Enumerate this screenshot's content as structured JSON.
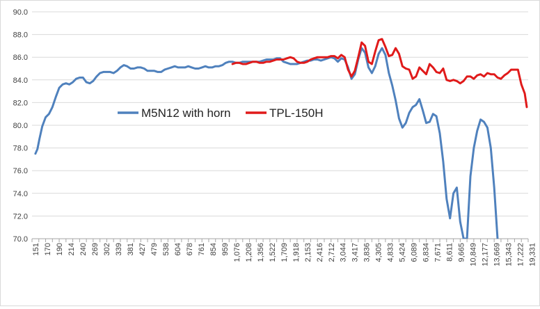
{
  "chart_data": {
    "type": "line",
    "title": "",
    "xlabel": "",
    "ylabel": "",
    "ylim": [
      70,
      90
    ],
    "y_ticks": [
      "70.0",
      "72.0",
      "74.0",
      "76.0",
      "78.0",
      "80.0",
      "82.0",
      "84.0",
      "86.0",
      "88.0",
      "90.0"
    ],
    "x_tick_labels": [
      "151",
      "170",
      "190",
      "214",
      "240",
      "269",
      "302",
      "339",
      "381",
      "427",
      "479",
      "538",
      "604",
      "678",
      "761",
      "854",
      "959",
      "1,076",
      "1,208",
      "1,356",
      "1,522",
      "1,709",
      "1,918",
      "2,153",
      "2,416",
      "2,712",
      "3,044",
      "3,417",
      "3,836",
      "4,305",
      "4,833",
      "5,424",
      "6,089",
      "6,834",
      "7,671",
      "8,611",
      "9,665",
      "10,849",
      "12,177",
      "13,669",
      "15,343",
      "17,222",
      "19,331"
    ],
    "grid": "horizontal",
    "legend_position": "center-left",
    "series": [
      {
        "name": "M5N12 with horn",
        "color": "#4f81bd",
        "points": [
          [
            0,
            77.5
          ],
          [
            0.3,
            77.9
          ],
          [
            0.6,
            78.8
          ],
          [
            1,
            79.9
          ],
          [
            1.5,
            80.7
          ],
          [
            2,
            81.0
          ],
          [
            2.5,
            81.6
          ],
          [
            3,
            82.5
          ],
          [
            3.5,
            83.3
          ],
          [
            4,
            83.6
          ],
          [
            4.5,
            83.7
          ],
          [
            5,
            83.6
          ],
          [
            5.5,
            83.8
          ],
          [
            6,
            84.1
          ],
          [
            6.5,
            84.2
          ],
          [
            7,
            84.2
          ],
          [
            7.5,
            83.8
          ],
          [
            8,
            83.7
          ],
          [
            8.5,
            83.9
          ],
          [
            9,
            84.3
          ],
          [
            9.5,
            84.6
          ],
          [
            10,
            84.7
          ],
          [
            10.5,
            84.7
          ],
          [
            11,
            84.7
          ],
          [
            11.5,
            84.6
          ],
          [
            12,
            84.8
          ],
          [
            12.5,
            85.1
          ],
          [
            13,
            85.3
          ],
          [
            13.5,
            85.2
          ],
          [
            14,
            85.0
          ],
          [
            14.5,
            85.0
          ],
          [
            15,
            85.1
          ],
          [
            15.5,
            85.1
          ],
          [
            16,
            85.0
          ],
          [
            16.5,
            84.8
          ],
          [
            17,
            84.8
          ],
          [
            17.5,
            84.8
          ],
          [
            18,
            84.7
          ],
          [
            18.5,
            84.7
          ],
          [
            19,
            84.9
          ],
          [
            19.5,
            85.0
          ],
          [
            20,
            85.1
          ],
          [
            20.5,
            85.2
          ],
          [
            21,
            85.1
          ],
          [
            21.5,
            85.1
          ],
          [
            22,
            85.1
          ],
          [
            22.5,
            85.2
          ],
          [
            23,
            85.1
          ],
          [
            23.5,
            85.0
          ],
          [
            24,
            85.0
          ],
          [
            24.5,
            85.1
          ],
          [
            25,
            85.2
          ],
          [
            25.5,
            85.1
          ],
          [
            26,
            85.1
          ],
          [
            26.5,
            85.2
          ],
          [
            27,
            85.2
          ],
          [
            27.5,
            85.3
          ],
          [
            28,
            85.5
          ],
          [
            28.5,
            85.6
          ],
          [
            29,
            85.6
          ],
          [
            29.5,
            85.5
          ],
          [
            30,
            85.5
          ],
          [
            30.5,
            85.6
          ],
          [
            31,
            85.6
          ],
          [
            31.5,
            85.6
          ],
          [
            32,
            85.6
          ],
          [
            32.5,
            85.6
          ],
          [
            33,
            85.6
          ],
          [
            33.5,
            85.7
          ],
          [
            34,
            85.8
          ],
          [
            34.5,
            85.8
          ],
          [
            35,
            85.8
          ],
          [
            35.5,
            85.9
          ],
          [
            36,
            85.9
          ],
          [
            36.5,
            85.6
          ],
          [
            37,
            85.5
          ],
          [
            37.5,
            85.4
          ],
          [
            38,
            85.4
          ],
          [
            38.5,
            85.4
          ],
          [
            39,
            85.5
          ],
          [
            39.5,
            85.6
          ],
          [
            40,
            85.7
          ],
          [
            40.5,
            85.7
          ],
          [
            41,
            85.8
          ],
          [
            41.5,
            85.8
          ],
          [
            42,
            85.7
          ],
          [
            42.5,
            85.8
          ],
          [
            43,
            85.9
          ],
          [
            43.5,
            86.0
          ],
          [
            44,
            85.9
          ],
          [
            44.5,
            85.6
          ],
          [
            45,
            85.9
          ],
          [
            45.5,
            85.8
          ],
          [
            46,
            85.1
          ],
          [
            46.5,
            84.1
          ],
          [
            47,
            84.5
          ],
          [
            47.5,
            85.8
          ],
          [
            48,
            86.8
          ],
          [
            48.5,
            86.4
          ],
          [
            49,
            85.1
          ],
          [
            49.5,
            84.6
          ],
          [
            50,
            85.2
          ],
          [
            50.5,
            86.3
          ],
          [
            51,
            86.8
          ],
          [
            51.5,
            86.2
          ],
          [
            52,
            84.6
          ],
          [
            52.5,
            83.5
          ],
          [
            53,
            82.2
          ],
          [
            53.5,
            80.6
          ],
          [
            54,
            79.8
          ],
          [
            54.5,
            80.2
          ],
          [
            55,
            81.1
          ],
          [
            55.5,
            81.6
          ],
          [
            56,
            81.8
          ],
          [
            56.5,
            82.3
          ],
          [
            57,
            81.3
          ],
          [
            57.5,
            80.2
          ],
          [
            58,
            80.3
          ],
          [
            58.5,
            81.0
          ],
          [
            59,
            80.8
          ],
          [
            59.5,
            79.3
          ],
          [
            60,
            76.8
          ],
          [
            60.5,
            73.5
          ],
          [
            61,
            71.8
          ],
          [
            61.5,
            74.0
          ],
          [
            62,
            74.5
          ],
          [
            62.5,
            71.5
          ],
          [
            63,
            70.0
          ],
          [
            63.5,
            70.0
          ],
          [
            64,
            75.5
          ],
          [
            64.5,
            78.0
          ],
          [
            65,
            79.5
          ],
          [
            65.5,
            80.5
          ],
          [
            66,
            80.3
          ],
          [
            66.5,
            79.8
          ],
          [
            67,
            78.0
          ],
          [
            67.5,
            74.5
          ],
          [
            68,
            70.0
          ]
        ]
      },
      {
        "name": "TPL-150H",
        "color": "#e01a1a",
        "points": [
          [
            29,
            85.4
          ],
          [
            29.5,
            85.5
          ],
          [
            30,
            85.5
          ],
          [
            30.5,
            85.4
          ],
          [
            31,
            85.4
          ],
          [
            31.5,
            85.5
          ],
          [
            32,
            85.6
          ],
          [
            32.5,
            85.6
          ],
          [
            33,
            85.5
          ],
          [
            33.5,
            85.5
          ],
          [
            34,
            85.6
          ],
          [
            34.5,
            85.6
          ],
          [
            35,
            85.7
          ],
          [
            35.5,
            85.8
          ],
          [
            36,
            85.8
          ],
          [
            36.5,
            85.8
          ],
          [
            37,
            85.9
          ],
          [
            37.5,
            86.0
          ],
          [
            38,
            85.9
          ],
          [
            38.5,
            85.6
          ],
          [
            39,
            85.5
          ],
          [
            39.5,
            85.5
          ],
          [
            40,
            85.6
          ],
          [
            40.5,
            85.8
          ],
          [
            41,
            85.9
          ],
          [
            41.5,
            86.0
          ],
          [
            42,
            86.0
          ],
          [
            42.5,
            86.0
          ],
          [
            43,
            86.0
          ],
          [
            43.5,
            86.1
          ],
          [
            44,
            86.1
          ],
          [
            44.5,
            85.9
          ],
          [
            45,
            86.2
          ],
          [
            45.5,
            86.0
          ],
          [
            46,
            84.9
          ],
          [
            46.5,
            84.3
          ],
          [
            47,
            84.8
          ],
          [
            47.5,
            86.0
          ],
          [
            48,
            87.3
          ],
          [
            48.5,
            87.0
          ],
          [
            49,
            85.6
          ],
          [
            49.5,
            85.4
          ],
          [
            50,
            86.5
          ],
          [
            50.5,
            87.5
          ],
          [
            51,
            87.6
          ],
          [
            51.5,
            86.9
          ],
          [
            52,
            86.1
          ],
          [
            52.5,
            86.2
          ],
          [
            53,
            86.8
          ],
          [
            53.5,
            86.3
          ],
          [
            54,
            85.2
          ],
          [
            54.5,
            85.0
          ],
          [
            55,
            84.9
          ],
          [
            55.5,
            84.1
          ],
          [
            56,
            84.3
          ],
          [
            56.5,
            85.1
          ],
          [
            57,
            84.8
          ],
          [
            57.5,
            84.5
          ],
          [
            58,
            85.4
          ],
          [
            58.5,
            85.1
          ],
          [
            59,
            84.7
          ],
          [
            59.5,
            84.6
          ],
          [
            60,
            85.0
          ],
          [
            60.5,
            84.0
          ],
          [
            61,
            83.9
          ],
          [
            61.5,
            84.0
          ],
          [
            62,
            83.9
          ],
          [
            62.5,
            83.7
          ],
          [
            63,
            83.9
          ],
          [
            63.5,
            84.3
          ],
          [
            64,
            84.3
          ],
          [
            64.5,
            84.1
          ],
          [
            65,
            84.4
          ],
          [
            65.5,
            84.5
          ],
          [
            66,
            84.3
          ],
          [
            66.5,
            84.6
          ],
          [
            67,
            84.5
          ],
          [
            67.5,
            84.5
          ],
          [
            68,
            84.2
          ],
          [
            68.5,
            84.1
          ],
          [
            69,
            84.4
          ],
          [
            69.5,
            84.6
          ],
          [
            70,
            84.9
          ],
          [
            70.5,
            84.9
          ],
          [
            71,
            84.9
          ],
          [
            71.5,
            83.6
          ],
          [
            72,
            82.8
          ],
          [
            72.3,
            81.6
          ]
        ]
      }
    ]
  }
}
